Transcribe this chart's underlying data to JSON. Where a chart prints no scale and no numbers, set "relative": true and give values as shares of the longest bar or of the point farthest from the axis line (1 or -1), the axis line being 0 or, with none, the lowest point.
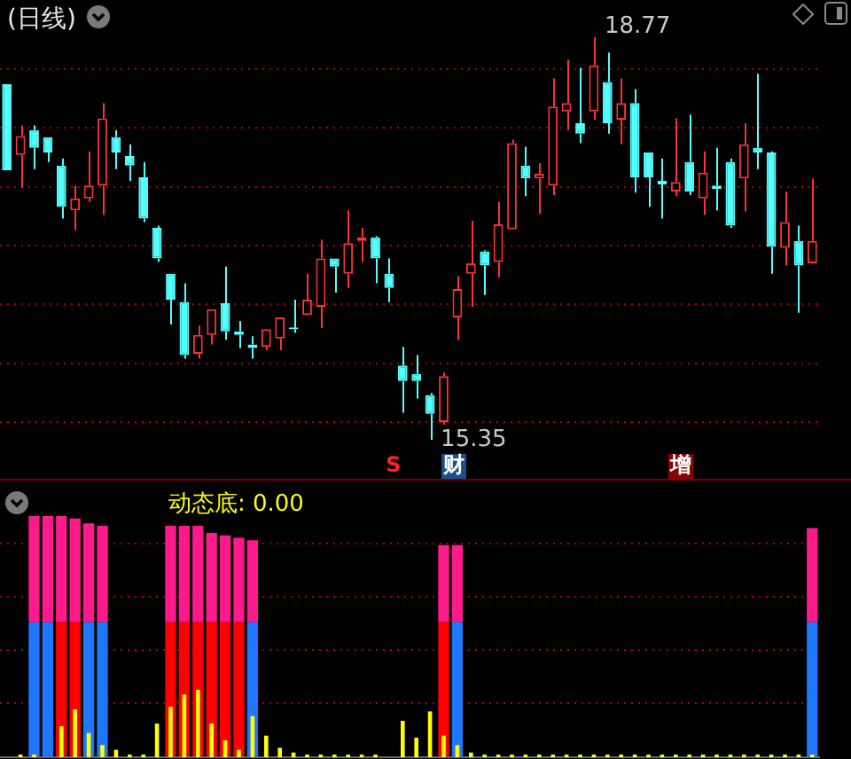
{
  "chart_data": [
    {
      "type": "candlestick",
      "title": "(日线)",
      "grid": "y",
      "tick_labels": false,
      "categories": [
        null,
        null,
        null,
        null,
        null,
        null,
        null,
        null,
        null,
        null,
        null,
        null,
        null,
        null,
        null,
        null,
        null,
        null,
        null,
        null,
        null,
        null,
        null,
        null,
        null,
        null,
        null,
        null,
        null,
        null,
        null,
        null,
        null,
        null,
        null,
        null,
        null,
        null,
        null,
        null,
        null,
        null,
        null,
        null,
        null,
        null,
        null,
        null,
        null,
        null,
        null,
        null,
        null,
        null,
        null,
        null,
        null,
        null,
        null,
        null
      ],
      "yticks": [
        {
          "value": 15.5,
          "label": null
        },
        {
          "value": 16.0,
          "label": null
        },
        {
          "value": 16.5,
          "label": null
        },
        {
          "value": 17.0,
          "label": null
        },
        {
          "value": 17.5,
          "label": null
        },
        {
          "value": 18.0,
          "label": null
        },
        {
          "value": 18.5,
          "label": null
        }
      ],
      "ohlc": [
        [
          18.37,
          18.37,
          17.64,
          17.64
        ],
        [
          17.77,
          18.02,
          17.49,
          17.93
        ],
        [
          17.98,
          18.02,
          17.65,
          17.83
        ],
        [
          17.92,
          17.92,
          17.71,
          17.79
        ],
        [
          17.68,
          17.74,
          17.23,
          17.33
        ],
        [
          17.3,
          17.51,
          17.13,
          17.4
        ],
        [
          17.4,
          17.8,
          17.37,
          17.51
        ],
        [
          17.51,
          18.21,
          17.26,
          18.08
        ],
        [
          17.92,
          17.98,
          17.65,
          17.79
        ],
        [
          17.76,
          17.86,
          17.55,
          17.68
        ],
        [
          17.58,
          17.71,
          17.2,
          17.23
        ],
        [
          17.15,
          17.17,
          16.86,
          16.89
        ],
        [
          16.76,
          16.76,
          16.33,
          16.54
        ],
        [
          16.52,
          16.68,
          16.04,
          16.07
        ],
        [
          16.08,
          16.32,
          16.04,
          16.24
        ],
        [
          16.24,
          16.46,
          16.16,
          16.46
        ],
        [
          16.51,
          16.82,
          16.2,
          16.27
        ],
        [
          16.27,
          16.36,
          16.13,
          16.24
        ],
        [
          16.16,
          16.23,
          16.04,
          16.13
        ],
        [
          16.14,
          16.29,
          16.11,
          16.29
        ],
        [
          16.21,
          16.39,
          16.11,
          16.39
        ],
        [
          16.3,
          16.54,
          16.26,
          16.29
        ],
        [
          16.41,
          16.76,
          16.41,
          16.54
        ],
        [
          16.48,
          17.05,
          16.3,
          16.89
        ],
        [
          16.89,
          16.89,
          16.6,
          16.82
        ],
        [
          16.76,
          17.3,
          16.64,
          17.02
        ],
        [
          17.04,
          17.15,
          16.86,
          17.07
        ],
        [
          17.07,
          17.08,
          16.68,
          16.89
        ],
        [
          16.76,
          16.89,
          16.52,
          16.64
        ],
        [
          15.98,
          16.14,
          15.58,
          15.85
        ],
        [
          15.91,
          16.07,
          15.7,
          15.85
        ],
        [
          15.73,
          15.75,
          15.35,
          15.57
        ],
        [
          15.5,
          15.92,
          15.48,
          15.89
        ],
        [
          16.39,
          16.74,
          16.2,
          16.63
        ],
        [
          16.76,
          17.21,
          16.48,
          16.85
        ],
        [
          16.95,
          16.96,
          16.58,
          16.83
        ],
        [
          16.86,
          17.37,
          16.73,
          17.18
        ],
        [
          17.14,
          17.9,
          17.14,
          17.87
        ],
        [
          17.68,
          17.84,
          17.42,
          17.57
        ],
        [
          17.57,
          17.7,
          17.27,
          17.61
        ],
        [
          17.51,
          18.42,
          17.43,
          18.18
        ],
        [
          18.14,
          18.58,
          17.98,
          18.21
        ],
        [
          18.04,
          18.51,
          17.87,
          17.95
        ],
        [
          18.14,
          18.77,
          18.07,
          18.53
        ],
        [
          18.39,
          18.64,
          17.95,
          18.04
        ],
        [
          18.07,
          18.42,
          17.86,
          18.21
        ],
        [
          18.21,
          18.33,
          17.45,
          17.58
        ],
        [
          17.79,
          17.79,
          17.33,
          17.58
        ],
        [
          17.55,
          17.74,
          17.23,
          17.52
        ],
        [
          17.46,
          18.08,
          17.42,
          17.54
        ],
        [
          17.71,
          18.11,
          17.43,
          17.46
        ],
        [
          17.4,
          17.8,
          17.26,
          17.62
        ],
        [
          17.51,
          17.83,
          17.3,
          17.48
        ],
        [
          17.71,
          17.74,
          17.15,
          17.17
        ],
        [
          17.57,
          18.04,
          17.29,
          17.86
        ],
        [
          17.83,
          18.46,
          17.65,
          17.79
        ],
        [
          17.79,
          17.8,
          16.76,
          16.99
        ],
        [
          16.98,
          17.46,
          16.83,
          17.2
        ],
        [
          17.04,
          17.17,
          16.43,
          16.83
        ],
        [
          16.85,
          17.57,
          16.85,
          17.04
        ]
      ],
      "colors": [
        "#54ffff",
        "#ff3232",
        "#54ffff",
        "#54ffff",
        "#54ffff",
        "#ff3232",
        "#ff3232",
        "#ff3232",
        "#54ffff",
        "#54ffff",
        "#54ffff",
        "#54ffff",
        "#54ffff",
        "#54ffff",
        "#ff3232",
        "#ff3232",
        "#54ffff",
        "#54ffff",
        "#54ffff",
        "#ff3232",
        "#ff3232",
        "#54ffff",
        "#ff3232",
        "#ff3232",
        "#54ffff",
        "#ff3232",
        "#ff3232",
        "#54ffff",
        "#54ffff",
        "#54ffff",
        "#54ffff",
        "#54ffff",
        "#ff3232",
        "#ff3232",
        "#ff3232",
        "#54ffff",
        "#ff3232",
        "#ff3232",
        "#54ffff",
        "#ff3232",
        "#ff3232",
        "#ff3232",
        "#54ffff",
        "#ff3232",
        "#54ffff",
        "#ff3232",
        "#54ffff",
        "#54ffff",
        "#54ffff",
        "#ff3232",
        "#54ffff",
        "#ff3232",
        "#54ffff",
        "#54ffff",
        "#ff3232",
        "#54ffff",
        "#54ffff",
        "#ff3232",
        "#54ffff",
        "#ff3232"
      ],
      "annotations": [
        "18.77",
        "15.35",
        "S",
        "财",
        "增"
      ]
    },
    {
      "type": "bar",
      "title": "动态底: 0.00",
      "stacked": true,
      "relative": true,
      "tick_labels": false,
      "ref_lines": [
        {
          "axis": "y",
          "value": 0.23,
          "color": "#b00000",
          "line_style": "dotted"
        },
        {
          "axis": "y",
          "value": 0.45,
          "color": "#b00000",
          "line_style": "dotted"
        },
        {
          "axis": "y",
          "value": 0.67,
          "color": "#b00000",
          "line_style": "dotted"
        },
        {
          "axis": "y",
          "value": 0.89,
          "color": "#b00000",
          "line_style": "dotted"
        }
      ],
      "categories": [
        null,
        null,
        null,
        null,
        null,
        null,
        null,
        null,
        null,
        null,
        null,
        null,
        null,
        null,
        null,
        null,
        null,
        null,
        null,
        null,
        null,
        null,
        null,
        null,
        null,
        null,
        null,
        null,
        null,
        null,
        null,
        null,
        null,
        null,
        null,
        null,
        null,
        null,
        null,
        null,
        null,
        null,
        null,
        null,
        null,
        null,
        null,
        null,
        null,
        null,
        null,
        null,
        null,
        null,
        null,
        null,
        null,
        null,
        null,
        null
      ],
      "series": [
        {
          "colors": [
            null,
            null,
            "#1e78ff",
            "#1e78ff",
            "#ff0000",
            "#ff0000",
            "#1e78ff",
            "#1e78ff",
            null,
            null,
            null,
            null,
            "#ff0000",
            "#ff0000",
            "#ff0000",
            "#ff0000",
            "#ff0000",
            "#ff0000",
            "#1e78ff",
            null,
            null,
            null,
            null,
            null,
            null,
            null,
            null,
            null,
            null,
            null,
            null,
            null,
            "#ff0000",
            "#1e78ff",
            null,
            null,
            null,
            null,
            null,
            null,
            null,
            null,
            null,
            null,
            null,
            null,
            null,
            null,
            null,
            null,
            null,
            null,
            null,
            null,
            null,
            null,
            null,
            null,
            null,
            "#1e78ff"
          ],
          "values": [
            null,
            null,
            0.56,
            0.56,
            0.56,
            0.56,
            0.56,
            0.56,
            null,
            null,
            null,
            null,
            0.56,
            0.56,
            0.56,
            0.56,
            0.56,
            0.56,
            0.56,
            null,
            null,
            null,
            null,
            null,
            null,
            null,
            null,
            null,
            null,
            null,
            null,
            null,
            0.56,
            0.56,
            null,
            null,
            null,
            null,
            null,
            null,
            null,
            null,
            null,
            null,
            null,
            null,
            null,
            null,
            null,
            null,
            null,
            null,
            null,
            null,
            null,
            null,
            null,
            null,
            null,
            0.56
          ]
        },
        {
          "color": "#ff1a8c",
          "values": [
            null,
            null,
            0.44,
            0.44,
            0.44,
            0.43,
            0.41,
            0.4,
            null,
            null,
            null,
            null,
            0.4,
            0.4,
            0.4,
            0.37,
            0.36,
            0.35,
            0.34,
            null,
            null,
            null,
            null,
            null,
            null,
            null,
            null,
            null,
            null,
            null,
            null,
            null,
            0.32,
            0.32,
            null,
            null,
            null,
            null,
            null,
            null,
            null,
            null,
            null,
            null,
            null,
            null,
            null,
            null,
            null,
            null,
            null,
            null,
            null,
            null,
            null,
            null,
            null,
            null,
            null,
            0.39
          ]
        }
      ]
    },
    {
      "type": "bar",
      "relative": true,
      "tick_labels": false,
      "categories": [
        null,
        null,
        null,
        null,
        null,
        null,
        null,
        null,
        null,
        null,
        null,
        null,
        null,
        null,
        null,
        null,
        null,
        null,
        null,
        null,
        null,
        null,
        null,
        null,
        null,
        null,
        null,
        null,
        null,
        null,
        null,
        null,
        null,
        null,
        null,
        null,
        null,
        null,
        null,
        null,
        null,
        null,
        null,
        null,
        null,
        null,
        null,
        null,
        null,
        null,
        null,
        null,
        null,
        null,
        null,
        null,
        null,
        null,
        null,
        null
      ],
      "series": [
        {
          "color": "#ffff00",
          "values": [
            null,
            0.04,
            0.04,
            null,
            0.46,
            0.71,
            0.36,
            0.18,
            0.11,
            0.04,
            0.04,
            0.5,
            0.75,
            0.93,
            1.0,
            0.5,
            0.25,
            0.11,
            0.61,
            0.32,
            0.14,
            0.07,
            0.04,
            0.04,
            0.04,
            0.04,
            0.04,
            0.04,
            null,
            0.54,
            0.29,
            0.68,
            0.32,
            0.18,
            0.07,
            0.04,
            0.04,
            0.04,
            0.04,
            0.04,
            0.04,
            0.04,
            0.04,
            0.04,
            0.04,
            0.04,
            0.04,
            0.04,
            0.04,
            0.04,
            0.04,
            0.04,
            0.04,
            0.04,
            0.04,
            0.04,
            0.04,
            0.04,
            0.04,
            0.04
          ]
        }
      ]
    }
  ]
}
